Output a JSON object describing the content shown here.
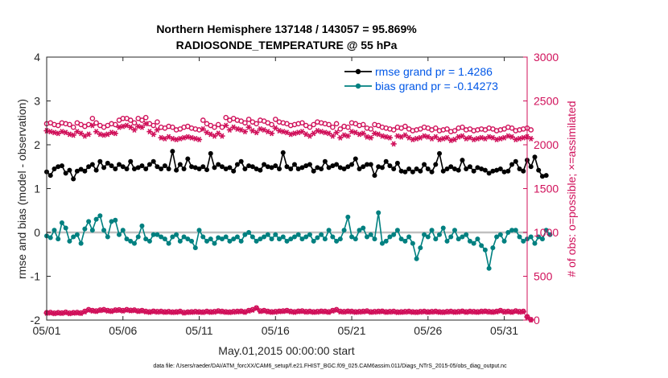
{
  "chart_data": {
    "type": "line",
    "title_line1": "Northern Hemisphere 137148 / 143057 = 95.869%",
    "title_line2": "RADIOSONDE_TEMPERATURE @ 55 hPa",
    "xlabel": "May.01,2015 00:00:00 start",
    "ylabel_left": "rmse and bias (model - observation)",
    "ylabel_right": "# of obs: o=possible; ×=assimilated",
    "footer": "data file: /Users/raeder/DAI/ATM_forcXX/CAM6_setup/f.e21.FHIST_BGC.f09_025.CAM6assim.011/Diags_NTrS_2015-05/obs_diag_output.nc",
    "xlim": [
      0,
      31.5
    ],
    "ylim_left": [
      -2,
      4
    ],
    "ylim_right": [
      0,
      3000
    ],
    "x_ticks": [
      0,
      5,
      10,
      15,
      20,
      25,
      30
    ],
    "x_tick_labels": [
      "05/01",
      "05/06",
      "05/11",
      "05/16",
      "05/21",
      "05/26",
      "05/31"
    ],
    "y_left_ticks": [
      4,
      3,
      2,
      1,
      0,
      -1,
      -2
    ],
    "y_left_tick_labels": [
      "4",
      "3",
      "2",
      "1",
      "0",
      "-1",
      "-2"
    ],
    "y_right_ticks": [
      3000,
      2500,
      2000,
      1500,
      1000,
      500,
      0
    ],
    "y_right_tick_labels": [
      "3000",
      "2500",
      "2000",
      "1500",
      "1000",
      "500",
      "0"
    ],
    "x_step_days": 0.25,
    "colors": {
      "rmse": "#000000",
      "bias": "#008080",
      "obs": "#d0105a",
      "zero_line": "#c0c0c0",
      "legend_text": "#0057e7"
    },
    "series": [
      {
        "name": "rmse grand pr = 1.4286",
        "axis": "left",
        "marker": "filled-circle",
        "values": [
          1.38,
          1.3,
          1.45,
          1.5,
          1.52,
          1.35,
          1.42,
          1.22,
          1.4,
          1.44,
          1.4,
          1.5,
          1.55,
          1.42,
          1.62,
          1.48,
          1.58,
          1.52,
          1.45,
          1.55,
          1.5,
          1.45,
          1.62,
          1.45,
          1.48,
          1.52,
          1.45,
          1.55,
          1.62,
          1.5,
          1.45,
          1.52,
          1.45,
          1.85,
          1.42,
          1.55,
          1.45,
          1.68,
          1.5,
          1.48,
          1.45,
          1.5,
          1.43,
          1.8,
          1.48,
          1.55,
          1.5,
          1.45,
          1.48,
          1.4,
          1.55,
          1.62,
          1.45,
          1.52,
          1.5,
          1.45,
          1.42,
          1.55,
          1.5,
          1.48,
          1.52,
          1.45,
          1.82,
          1.5,
          1.45,
          1.55,
          1.45,
          1.48,
          1.52,
          1.55,
          1.4,
          1.48,
          1.45,
          1.62,
          1.48,
          1.52,
          1.55,
          1.48,
          1.45,
          1.5,
          1.55,
          1.68,
          1.45,
          1.5,
          1.55,
          1.55,
          1.3,
          1.5,
          1.48,
          1.62,
          1.52,
          1.45,
          1.58,
          1.4,
          1.38,
          1.45,
          1.38,
          1.45,
          1.4,
          1.55,
          1.45,
          1.38,
          1.55,
          1.8,
          1.4,
          1.45,
          1.5,
          1.45,
          1.42,
          1.65,
          1.45,
          1.5,
          1.4,
          1.48,
          1.45,
          1.42,
          1.35,
          1.4,
          1.42,
          1.45,
          1.38,
          1.4,
          1.55,
          1.62,
          1.45,
          1.4,
          1.65,
          1.5,
          1.72,
          1.42,
          1.28,
          1.3
        ]
      },
      {
        "name": "bias grand pr = -0.14273",
        "axis": "left",
        "marker": "filled-circle",
        "values": [
          -0.08,
          -0.12,
          0.05,
          -0.15,
          0.22,
          0.1,
          -0.2,
          -0.1,
          -0.05,
          -0.25,
          0.08,
          0.25,
          0.05,
          0.3,
          0.38,
          0.05,
          -0.1,
          0.25,
          0.28,
          -0.05,
          0.05,
          -0.15,
          -0.2,
          -0.25,
          -0.1,
          0.15,
          -0.15,
          -0.2,
          -0.05,
          -0.05,
          -0.1,
          -0.15,
          -0.25,
          -0.1,
          -0.05,
          -0.2,
          -0.1,
          -0.15,
          -0.2,
          -0.35,
          0.05,
          -0.1,
          -0.2,
          -0.15,
          -0.25,
          -0.12,
          -0.15,
          -0.1,
          -0.2,
          -0.15,
          -0.1,
          -0.2,
          -0.05,
          0.0,
          -0.1,
          -0.2,
          -0.15,
          -0.1,
          -0.05,
          -0.15,
          -0.05,
          -0.15,
          -0.1,
          -0.2,
          -0.15,
          -0.1,
          -0.05,
          -0.15,
          -0.1,
          -0.05,
          -0.2,
          -0.12,
          -0.05,
          -0.15,
          0.05,
          -0.1,
          -0.2,
          -0.15,
          0.05,
          0.35,
          -0.1,
          -0.15,
          0.05,
          0.1,
          -0.1,
          -0.05,
          -0.15,
          0.45,
          -0.25,
          -0.2,
          -0.1,
          -0.05,
          0.05,
          -0.15,
          -0.2,
          -0.1,
          -0.25,
          -0.6,
          -0.35,
          -0.05,
          -0.1,
          0.05,
          -0.15,
          -0.05,
          0.1,
          -0.2,
          -0.1,
          0.05,
          -0.15,
          -0.1,
          -0.05,
          -0.2,
          -0.25,
          -0.15,
          -0.3,
          -0.4,
          -0.82,
          -0.35,
          -0.1,
          -0.05,
          -0.2,
          0.0,
          0.05,
          0.05,
          -0.1,
          -0.2,
          -0.15,
          -0.1,
          -0.25,
          -0.1,
          -0.15,
          0.05,
          -0.05
        ]
      },
      {
        "name": "possible",
        "axis": "right",
        "marker": "open-circle",
        "values": [
          2240,
          2250,
          2230,
          2220,
          2250,
          2240,
          2230,
          2200,
          2250,
          2230,
          2210,
          2230,
          2300,
          2250,
          2220,
          2200,
          2220,
          2240,
          2230,
          2280,
          2300,
          2300,
          2280,
          2250,
          2300,
          2280,
          2310,
          2240,
          2220,
          2260,
          2200,
          2190,
          2210,
          2200,
          2170,
          2180,
          2200,
          2210,
          2190,
          2180,
          2170,
          2280,
          2240,
          2220,
          2200,
          2230,
          2200,
          2310,
          2280,
          2300,
          2280,
          2270,
          2250,
          2290,
          2260,
          2240,
          2280,
          2270,
          2250,
          2230,
          2290,
          2260,
          2250,
          2240,
          2220,
          2230,
          2240,
          2250,
          2220,
          2200,
          2230,
          2260,
          2250,
          2240,
          2230,
          2200,
          2240,
          2180,
          2210,
          2200,
          2250,
          2240,
          2220,
          2230,
          2190,
          2180,
          2230,
          2220,
          2200,
          2190,
          2180,
          2170,
          2200,
          2190,
          2210,
          2180,
          2160,
          2170,
          2180,
          2200,
          2190,
          2170,
          2190,
          2160,
          2170,
          2180,
          2150,
          2160,
          2190,
          2200,
          2170,
          2180,
          2160,
          2170,
          2180,
          2170,
          2190,
          2180,
          2160,
          2170,
          2180,
          2200,
          2190,
          2160,
          2170,
          2180,
          2190,
          2170
        ]
      },
      {
        "name": "assimilated",
        "axis": "right",
        "marker": "asterisk",
        "values": [
          2160,
          2150,
          2140,
          2130,
          2150,
          2140,
          2120,
          2110,
          2150,
          2130,
          2100,
          2120,
          2220,
          2150,
          2120,
          2110,
          2120,
          2140,
          2130,
          2200,
          2210,
          2220,
          2200,
          2170,
          2210,
          2200,
          2240,
          2150,
          2120,
          2170,
          2080,
          2070,
          2090,
          2070,
          2060,
          2070,
          2080,
          2090,
          2080,
          2070,
          2060,
          2180,
          2140,
          2120,
          2100,
          2130,
          2100,
          2220,
          2170,
          2200,
          2180,
          2170,
          2150,
          2200,
          2160,
          2140,
          2180,
          2170,
          2150,
          2130,
          2190,
          2160,
          2150,
          2140,
          2120,
          2130,
          2140,
          2150,
          2120,
          2100,
          2130,
          2160,
          2150,
          2140,
          2130,
          2100,
          2140,
          2080,
          2110,
          2100,
          2150,
          2140,
          2120,
          2130,
          2090,
          2080,
          2130,
          2120,
          2100,
          2090,
          2080,
          2010,
          2100,
          2090,
          2110,
          2080,
          2060,
          2070,
          2080,
          2100,
          2090,
          2070,
          2090,
          2060,
          2070,
          2080,
          2050,
          2060,
          2090,
          2100,
          2070,
          2080,
          2060,
          2070,
          2080,
          2070,
          2090,
          2080,
          2060,
          2070,
          2080,
          2100,
          2090,
          2060,
          2070,
          2080,
          2090,
          2070
        ]
      },
      {
        "name": "bottom-possible",
        "axis": "right",
        "marker": "open-circle",
        "values": [
          85,
          88,
          80,
          85,
          82,
          90,
          80,
          85,
          88,
          82,
          100,
          120,
          110,
          105,
          115,
          120,
          110,
          105,
          115,
          118,
          110,
          120,
          112,
          115,
          105,
          110,
          100,
          95,
          102,
          98,
          100,
          95,
          98,
          92,
          95,
          100,
          88,
          92,
          95,
          98,
          95,
          92,
          100,
          95,
          98,
          105,
          100,
          95,
          92,
          98,
          100,
          102,
          95,
          110,
          120,
          140,
          105,
          110,
          100,
          95,
          98,
          102,
          105,
          110,
          100,
          95,
          102,
          105,
          98,
          100,
          95,
          98,
          102,
          100,
          95,
          110,
          120,
          100,
          98,
          102,
          100,
          95,
          98,
          100,
          105,
          95,
          98,
          100,
          102,
          95,
          98,
          100,
          92,
          95,
          98,
          100,
          95,
          92,
          98,
          100,
          95,
          98,
          100,
          95,
          92,
          98,
          100,
          95,
          98,
          102,
          95,
          100,
          98,
          95,
          100,
          102,
          98,
          95,
          100,
          110,
          98,
          100,
          95,
          105,
          98,
          100,
          40,
          5
        ]
      },
      {
        "name": "bottom-assimilated",
        "axis": "right",
        "marker": "asterisk",
        "values": [
          80,
          82,
          75,
          80,
          78,
          85,
          75,
          80,
          82,
          78,
          95,
          115,
          105,
          100,
          110,
          115,
          105,
          100,
          110,
          112,
          105,
          115,
          108,
          110,
          100,
          105,
          95,
          90,
          98,
          92,
          95,
          90,
          92,
          88,
          90,
          95,
          82,
          88,
          90,
          92,
          90,
          88,
          95,
          90,
          92,
          100,
          95,
          90,
          88,
          92,
          95,
          98,
          90,
          105,
          115,
          135,
          100,
          105,
          95,
          90,
          92,
          98,
          100,
          105,
          95,
          90,
          98,
          100,
          92,
          95,
          90,
          92,
          98,
          95,
          90,
          105,
          115,
          95,
          92,
          98,
          95,
          90,
          92,
          95,
          100,
          90,
          92,
          95,
          98,
          90,
          92,
          95,
          88,
          90,
          92,
          95,
          90,
          88,
          92,
          95,
          90,
          92,
          95,
          90,
          88,
          92,
          95,
          90,
          92,
          98,
          90,
          95,
          92,
          90,
          95,
          98,
          92,
          90,
          95,
          105,
          92,
          95,
          90,
          100,
          92,
          95,
          35,
          3
        ]
      }
    ]
  }
}
